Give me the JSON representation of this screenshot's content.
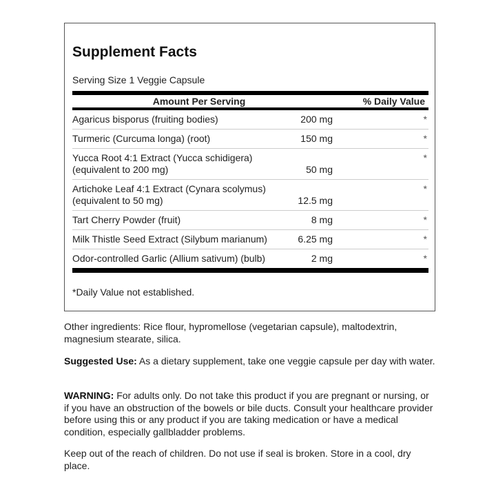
{
  "title": "Supplement Facts",
  "serving_size": "Serving Size 1 Veggie Capsule",
  "headers": {
    "amount": "Amount Per Serving",
    "daily_value": "% Daily Value"
  },
  "rows": [
    {
      "name": "Agaricus bisporus (fruiting bodies)",
      "amount": "200 mg",
      "dv": "*"
    },
    {
      "name": "Turmeric (Curcuma longa) (root)",
      "amount": "150 mg",
      "dv": "*"
    },
    {
      "name": "Yucca Root 4:1 Extract (Yucca schidigera) (equivalent to 200 mg)",
      "amount": "50 mg",
      "dv": "*"
    },
    {
      "name": "Artichoke Leaf 4:1 Extract (Cynara scolymus) (equivalent to 50 mg)",
      "amount": "12.5 mg",
      "dv": "*"
    },
    {
      "name": "Tart Cherry Powder (fruit)",
      "amount": "8 mg",
      "dv": "*"
    },
    {
      "name": "Milk Thistle Seed Extract (Silybum marianum)",
      "amount": "6.25 mg",
      "dv": "*"
    },
    {
      "name": "Odor-controlled Garlic (Allium sativum) (bulb)",
      "amount": "2 mg",
      "dv": "*"
    }
  ],
  "footnote": "*Daily Value not established.",
  "other_ingredients": "Other ingredients: Rice flour, hypromellose (vegetarian capsule), maltodextrin, magnesium stearate, silica.",
  "suggested_use": {
    "label": "Suggested Use:",
    "text": " As a dietary supplement, take one veggie capsule per day with water."
  },
  "warning": {
    "label": "WARNING:",
    "text": " For adults only. Do not take this product if you are pregnant or nursing, or if you have an obstruction of the bowels or bile ducts. Consult your healthcare provider before using this or any product if you are taking medication or have a medical condition, especially gallbladder problems."
  },
  "storage": "Keep out of the reach of children. Do not use if seal is broken. Store in a cool, dry place."
}
